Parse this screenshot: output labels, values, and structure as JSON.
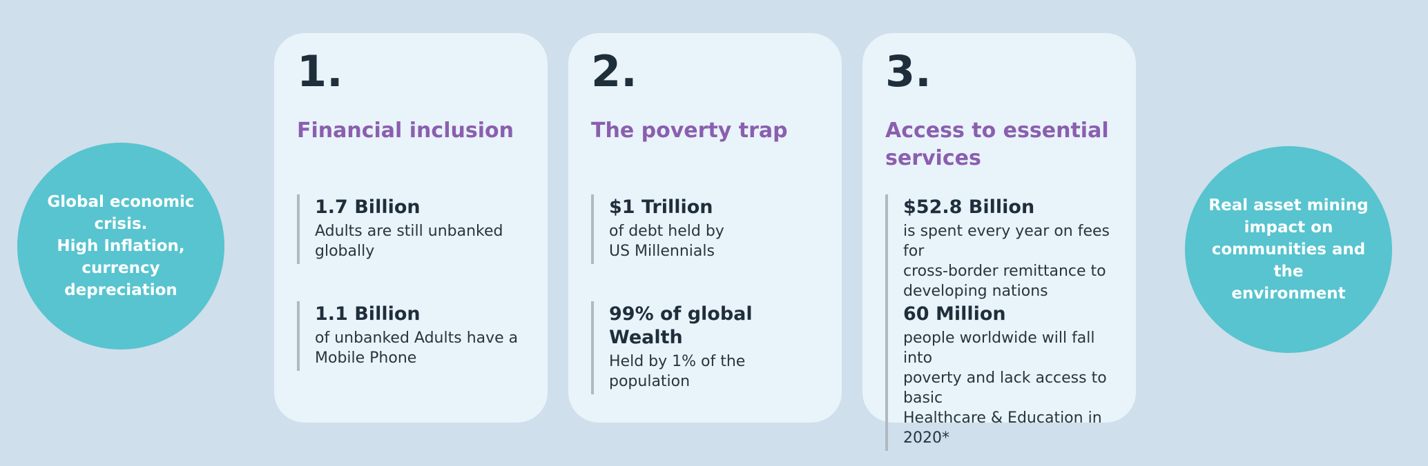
{
  "palette": {
    "page_background": "#cfdfeb",
    "card_background": "#e9f3fa",
    "circle_teal": "#57c4cf",
    "heading_purple": "#8a5fae",
    "text_dark": "#1f2e3b",
    "stat_bar_gray": "#b0b9c0",
    "circle_text_white": "#ffffff"
  },
  "left_circle": {
    "text": "Global economic\ncrisis.\nHigh Inflation,\ncurrency\ndepreciation"
  },
  "right_circle": {
    "text": "Real asset  mining\nimpact on\ncommunities and the\nenvironment"
  },
  "cards": [
    {
      "number": "1.",
      "title": "Financial inclusion",
      "stats": [
        {
          "value": "1.7 Billion",
          "description": "Adults are still unbanked\nglobally"
        },
        {
          "value": "1.1 Billion",
          "description": "of unbanked Adults have a\nMobile Phone"
        }
      ]
    },
    {
      "number": "2.",
      "title": "The poverty trap",
      "stats": [
        {
          "value": "$1 Trillion",
          "description": "of debt held by\nUS Millennials"
        },
        {
          "value": "99% of global Wealth",
          "description": "Held by 1% of the\npopulation"
        }
      ]
    },
    {
      "number": "3.",
      "title": "Access to essential services",
      "stats": [
        {
          "value": "$52.8 Billion",
          "description": "is spent every year on fees for\ncross-border remittance to\ndeveloping nations"
        },
        {
          "value": "60 Million",
          "description": "people worldwide will fall into\npoverty and lack access to basic\nHealthcare & Education in 2020*"
        }
      ]
    }
  ]
}
